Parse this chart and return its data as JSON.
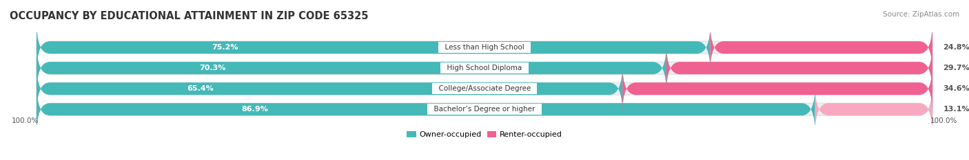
{
  "title": "OCCUPANCY BY EDUCATIONAL ATTAINMENT IN ZIP CODE 65325",
  "source": "Source: ZipAtlas.com",
  "categories": [
    "Less than High School",
    "High School Diploma",
    "College/Associate Degree",
    "Bachelor’s Degree or higher"
  ],
  "owner_pct": [
    75.2,
    70.3,
    65.4,
    86.9
  ],
  "renter_pct": [
    24.8,
    29.7,
    34.6,
    13.1
  ],
  "owner_color": "#45B8B8",
  "renter_colors": [
    "#F06090",
    "#F06090",
    "#F06090",
    "#F8A8C0"
  ],
  "background_color": "#FFFFFF",
  "bar_track_color": "#EFEFEF",
  "bar_track_border": "#DDDDDD",
  "title_fontsize": 10.5,
  "label_fontsize": 8.0,
  "bar_height": 0.6,
  "figsize": [
    14.06,
    2.33
  ],
  "dpi": 100,
  "x_left_label": "100.0%",
  "x_right_label": "100.0%",
  "legend_owner": "Owner-occupied",
  "legend_renter": "Renter-occupied"
}
